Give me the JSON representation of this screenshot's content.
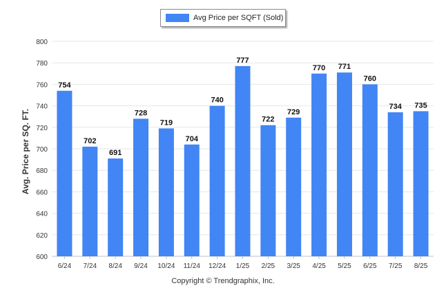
{
  "legend": {
    "label": "Avg Price per SQFT (Sold)"
  },
  "footer": {
    "copyright": "Copyright © Trendgraphix, Inc."
  },
  "colors": {
    "bar": "#4285f4",
    "grid": "#e6e6e6",
    "axis": "#c0c0c0"
  },
  "chart_data": {
    "type": "bar",
    "title": "",
    "xlabel": "",
    "ylabel": "Avg. Price per SQ. FT.",
    "categories": [
      "6/24",
      "7/24",
      "8/24",
      "9/24",
      "10/24",
      "11/24",
      "12/24",
      "1/25",
      "2/25",
      "3/25",
      "4/25",
      "5/25",
      "6/25",
      "7/25",
      "8/25"
    ],
    "series": [
      {
        "name": "Avg Price per SQFT (Sold)",
        "values": [
          754,
          702,
          691,
          728,
          719,
          704,
          740,
          777,
          722,
          729,
          770,
          771,
          760,
          734,
          735
        ]
      }
    ],
    "ylim": [
      600,
      800
    ],
    "yticks": [
      600,
      620,
      640,
      660,
      680,
      700,
      720,
      740,
      760,
      780,
      800
    ],
    "grid": true,
    "legend_position": "top-center",
    "data_labels": true
  }
}
